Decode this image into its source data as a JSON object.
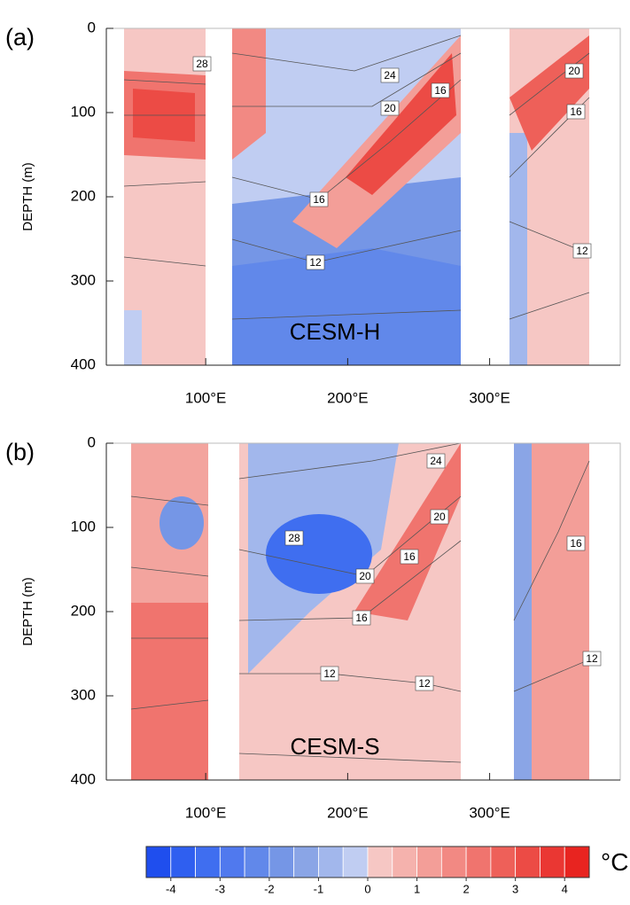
{
  "chart_data": [
    {
      "type": "contour",
      "panel_label": "(a)",
      "annotation": "CESM-H",
      "ylabel": "DEPTH (m)",
      "xlim": [
        30,
        392
      ],
      "xticks": [
        {
          "value": 100,
          "label": "100°E"
        },
        {
          "value": 200,
          "label": "200°E"
        },
        {
          "value": 300,
          "label": "300°E"
        }
      ],
      "ylim": [
        400,
        0
      ],
      "yticks": [
        0,
        100,
        200,
        300,
        400
      ],
      "contour_labels": [
        28,
        24,
        16,
        20,
        20,
        16,
        16,
        12,
        12
      ]
    },
    {
      "type": "contour",
      "panel_label": "(b)",
      "annotation": "CESM-S",
      "ylabel": "DEPTH (m)",
      "xlim": [
        30,
        392
      ],
      "xticks": [
        {
          "value": 100,
          "label": "100°E"
        },
        {
          "value": 200,
          "label": "200°E"
        },
        {
          "value": 300,
          "label": "300°E"
        }
      ],
      "ylim": [
        400,
        0
      ],
      "yticks": [
        0,
        100,
        200,
        300,
        400
      ],
      "contour_labels": [
        24,
        28,
        20,
        20,
        16,
        16,
        16,
        12,
        12,
        12
      ]
    }
  ],
  "colorbar": {
    "lim": [
      -4.5,
      4.5
    ],
    "ticks": [
      -4,
      -3,
      -2,
      -1,
      0,
      1,
      2,
      3,
      4
    ],
    "unit": "°C",
    "colors": [
      "#1f4eee",
      "#2f5ff0",
      "#3f6ef0",
      "#5079ee",
      "#6188ea",
      "#7596e6",
      "#8aa5e6",
      "#a2b7ec",
      "#c0cdf2",
      "#f6c7c4",
      "#f5b2ad",
      "#f39e98",
      "#f28983",
      "#f0746e",
      "#ee6059",
      "#ec4b45",
      "#ea3733",
      "#e82420"
    ]
  }
}
